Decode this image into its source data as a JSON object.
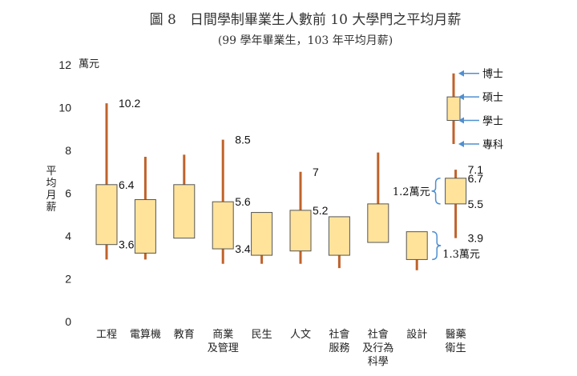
{
  "title": "圖 8　日間學制畢業生人數前 10 大學門之平均月薪",
  "subtitle": "(99 學年畢業生，103 年平均月薪)",
  "colors": {
    "box_fill": "#FFE39B",
    "box_stroke": "#555555",
    "whisker": "#C0622A",
    "arrow": "#4F8FD0",
    "bracket": "#4F8FD0"
  },
  "chart_data": {
    "type": "boxplot",
    "title": "圖 8　日間學制畢業生人數前 10 大學門之平均月薪",
    "subtitle": "(99 學年畢業生，103 年平均月薪)",
    "ylabel": "平均月薪",
    "yunit": "萬元",
    "ylim": [
      0,
      12
    ],
    "yticks": [
      0,
      2,
      4,
      6,
      8,
      10,
      12
    ],
    "grid": false,
    "categories": [
      [
        "工程"
      ],
      [
        "電算機"
      ],
      [
        "教育"
      ],
      [
        "商業",
        "及管理"
      ],
      [
        "民生"
      ],
      [
        "人文"
      ],
      [
        "社會",
        "服務"
      ],
      [
        "社會",
        "及行為",
        "科學"
      ],
      [
        "設計"
      ],
      [
        "醫藥",
        "衛生"
      ]
    ],
    "series": [
      {
        "min": 2.9,
        "q1": 3.6,
        "q3": 6.4,
        "max": 10.2
      },
      {
        "min": 2.9,
        "q1": 3.2,
        "q3": 5.7,
        "max": 7.7
      },
      {
        "min": 3.9,
        "q1": 3.9,
        "q3": 6.4,
        "max": 7.8
      },
      {
        "min": 2.7,
        "q1": 3.4,
        "q3": 5.6,
        "max": 8.5
      },
      {
        "min": 2.7,
        "q1": 3.1,
        "q3": 5.1,
        "max": 5.1
      },
      {
        "min": 2.7,
        "q1": 3.3,
        "q3": 5.2,
        "max": 7.0
      },
      {
        "min": 2.5,
        "q1": 3.1,
        "q3": 4.9,
        "max": 4.9
      },
      {
        "min": 3.7,
        "q1": 3.7,
        "q3": 5.5,
        "max": 7.9
      },
      {
        "min": 2.4,
        "q1": 2.9,
        "q3": 4.2,
        "max": 4.2
      },
      {
        "min": 3.9,
        "q1": 5.5,
        "q3": 6.7,
        "max": 7.1
      }
    ],
    "data_labels": [
      {
        "category": 0,
        "value": 10.2,
        "text": "10.2"
      },
      {
        "category": 0,
        "value": 6.4,
        "text": "6.4"
      },
      {
        "category": 0,
        "value": 3.6,
        "text": "3.6"
      },
      {
        "category": 3,
        "value": 8.5,
        "text": "8.5"
      },
      {
        "category": 3,
        "value": 5.6,
        "text": "5.6"
      },
      {
        "category": 3,
        "value": 3.4,
        "text": "3.4"
      },
      {
        "category": 5,
        "value": 7.0,
        "text": "7"
      },
      {
        "category": 5,
        "value": 5.2,
        "text": "5.2"
      },
      {
        "category": 9,
        "value": 7.1,
        "text": "7.1"
      },
      {
        "category": 9,
        "value": 6.7,
        "text": "6.7"
      },
      {
        "category": 9,
        "value": 5.5,
        "text": "5.5"
      },
      {
        "category": 9,
        "value": 3.9,
        "text": "3.9"
      }
    ],
    "legend": {
      "box": {
        "min": 8.3,
        "q1": 9.4,
        "q3": 10.5,
        "max": 11.6
      },
      "labels": [
        {
          "text": "博士",
          "value": 11.6
        },
        {
          "text": "碩士",
          "value": 10.5
        },
        {
          "text": "學士",
          "value": 9.4
        },
        {
          "text": "專科",
          "value": 8.3
        }
      ]
    },
    "annotations": [
      {
        "text": "1.2萬元",
        "category": 9,
        "from": 5.5,
        "to": 6.7,
        "side": "left"
      },
      {
        "text": "1.3萬元",
        "category": 8,
        "from": 2.9,
        "to": 4.2,
        "side": "right"
      }
    ]
  }
}
